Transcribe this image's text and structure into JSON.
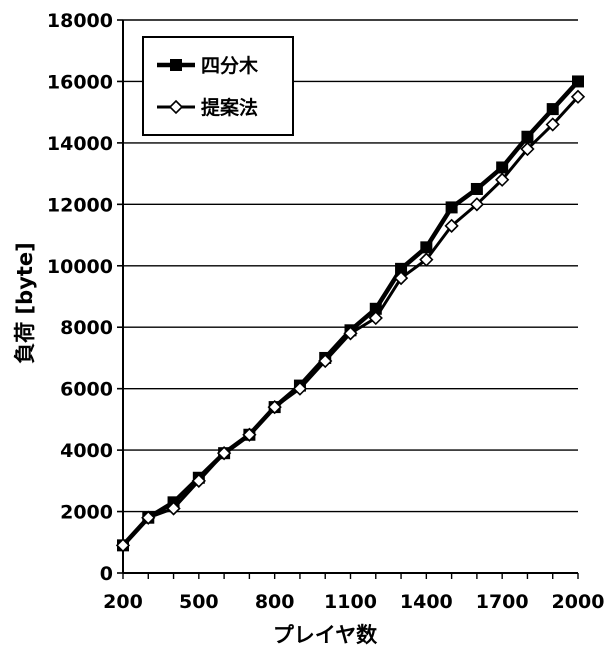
{
  "chart_data": {
    "type": "line",
    "title": "",
    "xlabel": "プレイヤ数",
    "ylabel": "負荷 [byte]",
    "x": [
      200,
      300,
      400,
      500,
      600,
      700,
      800,
      900,
      1000,
      1100,
      1200,
      1300,
      1400,
      1500,
      1600,
      1700,
      1800,
      1900,
      2000
    ],
    "xlim": [
      200,
      2000
    ],
    "ylim": [
      0,
      18000
    ],
    "xticks": [
      200,
      500,
      800,
      1100,
      1400,
      1700,
      2000
    ],
    "xtick_labels": [
      "200",
      "500",
      "800",
      "1100",
      "1400",
      "1700",
      "2000"
    ],
    "yticks": [
      0,
      2000,
      4000,
      6000,
      8000,
      10000,
      12000,
      14000,
      16000,
      18000
    ],
    "ytick_labels": [
      "0",
      "2000",
      "4000",
      "6000",
      "8000",
      "10000",
      "12000",
      "14000",
      "16000",
      "18000"
    ],
    "grid": "horizontal",
    "legend_position": "top-left",
    "series": [
      {
        "name": "四分木",
        "marker": "square",
        "color": "#000000",
        "values": [
          900,
          1800,
          2300,
          3100,
          3900,
          4500,
          5400,
          6100,
          7000,
          7900,
          8600,
          9900,
          10600,
          11900,
          12500,
          13200,
          14200,
          15100,
          16000
        ]
      },
      {
        "name": "提案法",
        "marker": "diamond",
        "color": "#000000",
        "values": [
          900,
          1800,
          2100,
          3000,
          3900,
          4500,
          5400,
          6000,
          6900,
          7800,
          8300,
          9600,
          10200,
          11300,
          12000,
          12800,
          13800,
          14600,
          15500
        ]
      }
    ]
  }
}
